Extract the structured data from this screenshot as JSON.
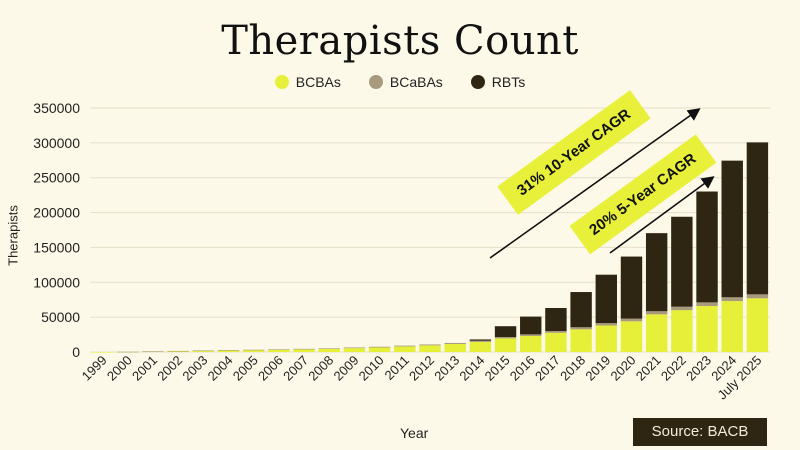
{
  "chart_data": {
    "type": "bar",
    "stacked": true,
    "title": "Therapists Count",
    "xlabel": "Year",
    "ylabel": "Therapists",
    "ylim": [
      0,
      350000
    ],
    "yticks": [
      0,
      50000,
      100000,
      150000,
      200000,
      250000,
      300000,
      350000
    ],
    "grid": true,
    "legend_position": "top-center",
    "categories": [
      "1999",
      "2000",
      "2001",
      "2002",
      "2003",
      "2004",
      "2005",
      "2006",
      "2007",
      "2008",
      "2009",
      "2010",
      "2011",
      "2012",
      "2013",
      "2014",
      "2015",
      "2016",
      "2017",
      "2018",
      "2019",
      "2020",
      "2021",
      "2022",
      "2023",
      "2024",
      "July 2025"
    ],
    "series": [
      {
        "name": "BCBAs",
        "color": "#e6f038",
        "values": [
          30,
          300,
          800,
          1300,
          1800,
          2300,
          2700,
          3200,
          3800,
          4500,
          5500,
          6500,
          8000,
          9500,
          11500,
          14500,
          19500,
          23000,
          27500,
          32500,
          38000,
          44000,
          54000,
          60000,
          66000,
          73000,
          77000
        ]
      },
      {
        "name": "BCaBAs",
        "color": "#a89a7c",
        "values": [
          0,
          50,
          150,
          250,
          350,
          450,
          550,
          650,
          750,
          850,
          950,
          1050,
          1150,
          1300,
          1500,
          1700,
          2000,
          2300,
          2600,
          3000,
          3400,
          3900,
          4500,
          5000,
          5200,
          5500,
          5700
        ]
      },
      {
        "name": "RBTs",
        "color": "#2f2513",
        "values": [
          0,
          0,
          0,
          0,
          0,
          0,
          0,
          0,
          0,
          0,
          0,
          0,
          0,
          0,
          0,
          1800,
          15500,
          25500,
          33000,
          50500,
          69500,
          89000,
          112000,
          129000,
          159000,
          196000,
          218000
        ]
      }
    ],
    "annotations": [
      {
        "text": "31% 10-Year CAGR"
      },
      {
        "text": "20% 5-Year CAGR"
      }
    ],
    "source": "Source: BACB"
  }
}
